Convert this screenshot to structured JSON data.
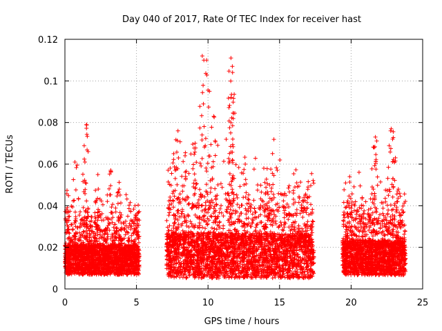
{
  "chart_data": {
    "type": "scatter",
    "title": "Day 040 of 2017, Rate Of TEC Index for receiver hast",
    "xlabel": "GPS time / hours",
    "ylabel": "ROTI / TECUs",
    "xlim": [
      0,
      25
    ],
    "ylim": [
      0,
      0.12
    ],
    "x_ticks": [
      0,
      5,
      10,
      15,
      20,
      25
    ],
    "x_tick_labels": [
      "0",
      "5",
      "10",
      "15",
      "20",
      "25"
    ],
    "y_ticks": [
      0,
      0.02,
      0.04,
      0.06,
      0.08,
      0.1,
      0.12
    ],
    "y_tick_labels": [
      "0",
      "0.02",
      "0.04",
      "0.06",
      "0.08",
      "0.1",
      "0.12"
    ],
    "grid": true,
    "marker": "+",
    "marker_color": "#ff0000",
    "series": [
      {
        "name": "ROTI",
        "segments": [
          {
            "start": 0.0,
            "end": 5.2,
            "baseline": 0.014,
            "spread": 0.012,
            "peaks": [
              [
                0.1,
                0.038
              ],
              [
                0.7,
                0.061
              ],
              [
                1.5,
                0.079
              ],
              [
                1.4,
                0.061
              ],
              [
                2.3,
                0.055
              ],
              [
                3.2,
                0.057
              ],
              [
                3.8,
                0.048
              ],
              [
                4.9,
                0.04
              ]
            ]
          },
          {
            "start": 7.1,
            "end": 17.4,
            "baseline": 0.016,
            "spread": 0.018,
            "peaks": [
              [
                7.6,
                0.065
              ],
              [
                7.9,
                0.076
              ],
              [
                8.4,
                0.064
              ],
              [
                9.1,
                0.07
              ],
              [
                9.6,
                0.112
              ],
              [
                9.9,
                0.11
              ],
              [
                10.1,
                0.095
              ],
              [
                10.4,
                0.083
              ],
              [
                11.6,
                0.111
              ],
              [
                11.7,
                0.107
              ],
              [
                11.6,
                0.092
              ],
              [
                11.6,
                0.08
              ],
              [
                11.7,
                0.062
              ],
              [
                12.6,
                0.06
              ],
              [
                13.9,
                0.058
              ],
              [
                14.3,
                0.05
              ],
              [
                16.2,
                0.051
              ],
              [
                16.8,
                0.045
              ]
            ]
          },
          {
            "start": 19.4,
            "end": 23.8,
            "baseline": 0.015,
            "spread": 0.014,
            "peaks": [
              [
                19.9,
                0.054
              ],
              [
                21.7,
                0.073
              ],
              [
                21.6,
                0.068
              ],
              [
                22.8,
                0.077
              ],
              [
                22.9,
                0.072
              ],
              [
                23.1,
                0.063
              ],
              [
                23.3,
                0.048
              ]
            ]
          }
        ]
      }
    ]
  }
}
